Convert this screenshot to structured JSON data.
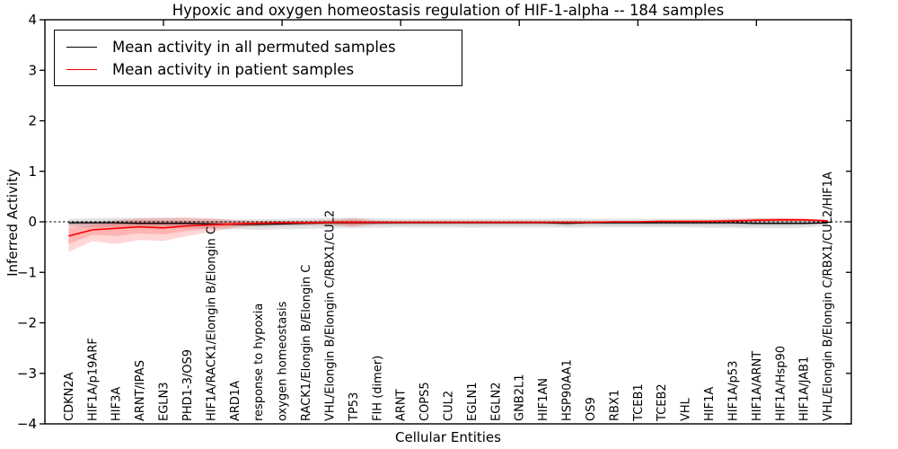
{
  "figure": {
    "kind": "matplotlib-line-plot"
  },
  "chart_data": {
    "type": "line",
    "title": "Hypoxic and oxygen homeostasis regulation of HIF-1-alpha -- 184 samples",
    "xlabel": "Cellular Entities",
    "ylabel": "Inferred Activity",
    "ylim": [
      -4,
      4
    ],
    "xlim": [
      0,
      34
    ],
    "grid": false,
    "legend_position": "upper left",
    "y_tick_labels": [
      "4",
      "3",
      "2",
      "1",
      "0",
      "−1",
      "−2",
      "−3",
      "−4"
    ],
    "y_tick_values": [
      4,
      3,
      2,
      1,
      0,
      -1,
      -2,
      -3,
      -4
    ],
    "zero_line": {
      "value": 0,
      "style": "dashed",
      "color": "#000000"
    },
    "categories": [
      "CDKN2A",
      "HIF1A/p19ARF",
      "HIF3A",
      "ARNT/IPAS",
      "EGLN3",
      "PHD1-3/OS9",
      "HIF1A/RACK1/Elongin B/Elongin C",
      "ARD1A",
      "response to hypoxia",
      "oxygen homeostasis",
      "RACK1/Elongin B/Elongin C",
      "VHL/Elongin B/Elongin C/RBX1/CUL2",
      "TP53",
      "FIH (dimer)",
      "ARNT",
      "COPS5",
      "CUL2",
      "EGLN1",
      "EGLN2",
      "GNB2L1",
      "HIF1AN",
      "HSP90AA1",
      "OS9",
      "RBX1",
      "TCEB1",
      "TCEB2",
      "VHL",
      "HIF1A",
      "HIF1A/p53",
      "HIF1A/ARNT",
      "HIF1A/Hsp90",
      "HIF1A/JAB1",
      "VHL/Elongin B/Elongin C/RBX1/CUL2/HIF1A"
    ],
    "series": [
      {
        "name": "Mean activity in all permuted samples",
        "color": "#000000",
        "values": [
          -0.02,
          -0.02,
          -0.02,
          -0.03,
          -0.03,
          -0.03,
          -0.04,
          -0.05,
          -0.05,
          -0.04,
          -0.03,
          -0.02,
          -0.02,
          -0.02,
          -0.02,
          -0.02,
          -0.02,
          -0.02,
          -0.02,
          -0.02,
          -0.02,
          -0.03,
          -0.02,
          -0.02,
          -0.02,
          -0.02,
          -0.02,
          -0.02,
          -0.02,
          -0.03,
          -0.03,
          -0.03,
          -0.02
        ],
        "band_outer_upper": [
          0.06,
          0.07,
          0.08,
          0.08,
          0.08,
          0.07,
          0.06,
          0.05,
          0.05,
          0.06,
          0.07,
          0.08,
          0.08,
          0.07,
          0.06,
          0.06,
          0.06,
          0.06,
          0.06,
          0.06,
          0.06,
          0.07,
          0.06,
          0.06,
          0.06,
          0.06,
          0.06,
          0.06,
          0.07,
          0.07,
          0.07,
          0.06,
          0.03
        ],
        "band_outer_lower": [
          -0.1,
          -0.11,
          -0.12,
          -0.12,
          -0.12,
          -0.13,
          -0.14,
          -0.15,
          -0.16,
          -0.15,
          -0.14,
          -0.13,
          -0.13,
          -0.12,
          -0.11,
          -0.11,
          -0.11,
          -0.12,
          -0.11,
          -0.11,
          -0.11,
          -0.12,
          -0.11,
          -0.11,
          -0.11,
          -0.11,
          -0.11,
          -0.12,
          -0.12,
          -0.13,
          -0.13,
          -0.12,
          -0.08
        ],
        "band_inner_upper": [
          0.02,
          0.02,
          0.03,
          0.03,
          0.03,
          0.02,
          0.02,
          0.01,
          0.01,
          0.02,
          0.02,
          0.03,
          0.03,
          0.02,
          0.02,
          0.02,
          0.02,
          0.02,
          0.02,
          0.02,
          0.02,
          0.02,
          0.02,
          0.02,
          0.02,
          0.02,
          0.02,
          0.02,
          0.02,
          0.02,
          0.02,
          0.02,
          0.01
        ],
        "band_inner_lower": [
          -0.06,
          -0.07,
          -0.07,
          -0.07,
          -0.07,
          -0.08,
          -0.08,
          -0.09,
          -0.1,
          -0.09,
          -0.08,
          -0.08,
          -0.08,
          -0.07,
          -0.07,
          -0.07,
          -0.07,
          -0.07,
          -0.07,
          -0.07,
          -0.07,
          -0.08,
          -0.07,
          -0.07,
          -0.07,
          -0.07,
          -0.07,
          -0.07,
          -0.08,
          -0.08,
          -0.08,
          -0.07,
          -0.05
        ],
        "band_color": "rgba(0,0,0,0.11)"
      },
      {
        "name": "Mean activity in patient samples",
        "color": "#ff0000",
        "values": [
          -0.28,
          -0.16,
          -0.13,
          -0.1,
          -0.12,
          -0.08,
          -0.06,
          -0.04,
          -0.03,
          -0.02,
          -0.02,
          -0.01,
          -0.01,
          -0.01,
          -0.01,
          -0.01,
          -0.01,
          -0.01,
          -0.01,
          -0.01,
          -0.01,
          -0.01,
          -0.01,
          0.0,
          0.0,
          0.01,
          0.01,
          0.01,
          0.02,
          0.03,
          0.04,
          0.04,
          0.02
        ],
        "band_outer_upper": [
          -0.04,
          -0.02,
          0.03,
          0.07,
          0.08,
          0.09,
          0.07,
          0.03,
          0.02,
          0.02,
          0.02,
          0.03,
          0.08,
          0.02,
          0.01,
          0.01,
          0.01,
          0.01,
          0.01,
          0.01,
          0.01,
          0.01,
          0.01,
          0.01,
          0.01,
          0.02,
          0.02,
          0.03,
          0.05,
          0.07,
          0.08,
          0.07,
          0.04
        ],
        "band_outer_lower": [
          -0.6,
          -0.38,
          -0.44,
          -0.36,
          -0.38,
          -0.28,
          -0.2,
          -0.12,
          -0.08,
          -0.07,
          -0.06,
          -0.06,
          -0.1,
          -0.05,
          -0.04,
          -0.03,
          -0.03,
          -0.03,
          -0.03,
          -0.03,
          -0.03,
          -0.03,
          -0.03,
          -0.02,
          -0.02,
          -0.02,
          -0.02,
          -0.01,
          -0.01,
          0.0,
          0.0,
          0.0,
          0.0
        ],
        "band_inner_upper": [
          -0.13,
          -0.07,
          -0.03,
          0.02,
          0.01,
          0.02,
          0.01,
          0.0,
          0.0,
          0.0,
          0.0,
          0.01,
          0.03,
          0.0,
          0.0,
          0.0,
          0.0,
          0.0,
          0.0,
          0.0,
          0.0,
          0.0,
          0.0,
          0.0,
          0.0,
          0.01,
          0.01,
          0.02,
          0.03,
          0.05,
          0.06,
          0.05,
          0.03
        ],
        "band_inner_lower": [
          -0.44,
          -0.26,
          -0.28,
          -0.23,
          -0.25,
          -0.18,
          -0.13,
          -0.08,
          -0.06,
          -0.05,
          -0.04,
          -0.04,
          -0.06,
          -0.03,
          -0.02,
          -0.02,
          -0.02,
          -0.02,
          -0.02,
          -0.02,
          -0.02,
          -0.02,
          -0.02,
          -0.01,
          -0.01,
          -0.01,
          -0.01,
          0.0,
          0.0,
          0.01,
          0.02,
          0.02,
          0.01
        ],
        "band_color": "rgba(255,0,0,0.16)"
      }
    ]
  },
  "legend": {
    "entries": [
      {
        "label": "Mean activity in all permuted samples",
        "color": "#000000"
      },
      {
        "label": "Mean activity in patient samples",
        "color": "#ff0000"
      }
    ]
  }
}
